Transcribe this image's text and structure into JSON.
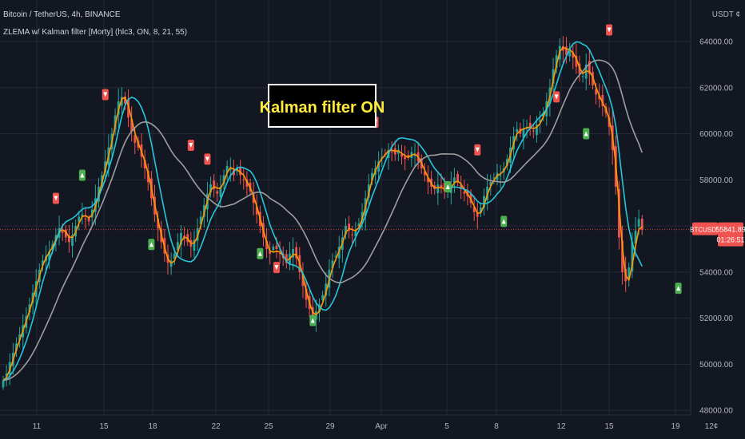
{
  "header": {
    "symbol_line": "Bitcoin / TetherUS, 4h, BINANCE",
    "indicator_line": "ZLEMA w/ Kalman filter [Morty] (hlc3, ON, 8, 21, 55)"
  },
  "currency_label": "USDT",
  "currency_sign": "¢",
  "annotation": "Kalman filter ON",
  "price_tag": {
    "symbol": "BTCUSDT",
    "price": "55841.89",
    "countdown": "01:26:51"
  },
  "colors": {
    "background": "#131722",
    "grid": "#262a35",
    "up_candle": "#26a69a",
    "down_candle": "#ef5350",
    "fast_line": "#ff9800",
    "mid_line": "#26c6da",
    "slow_line": "#9e9e9e",
    "buy_marker": "#4caf50",
    "sell_marker": "#ef5350",
    "axis_text": "#b2b5be",
    "annotation_text": "#ffeb3b"
  },
  "chart_data": {
    "type": "candlestick",
    "interval": "4h",
    "y_axis": {
      "ylim": [
        47800,
        65800
      ],
      "ticks": [
        48000,
        50000,
        52000,
        54000,
        56000,
        58000,
        60000,
        62000,
        64000
      ],
      "tick_labels": [
        "48000.00",
        "50000.00",
        "52000.00",
        "54000.00",
        "56000.00",
        "58000.00",
        "60000.00",
        "62000.00",
        "64000.00"
      ]
    },
    "x_axis": {
      "tick_labels": [
        "11",
        "15",
        "18",
        "22",
        "25",
        "29",
        "Apr",
        "5",
        "8",
        "12",
        "15",
        "19",
        "12¢"
      ]
    },
    "close_series": [
      49300,
      49600,
      50100,
      50500,
      50900,
      51300,
      51700,
      52100,
      52600,
      53100,
      53600,
      54100,
      54500,
      54700,
      54900,
      55200,
      55600,
      55900,
      55700,
      55500,
      55300,
      55600,
      56000,
      56400,
      56500,
      56300,
      56200,
      56700,
      57200,
      57700,
      58200,
      58800,
      59400,
      60000,
      60800,
      61400,
      61600,
      61300,
      60700,
      60100,
      59600,
      59400,
      59000,
      58500,
      57900,
      57200,
      56500,
      55900,
      55300,
      54800,
      54400,
      54500,
      54800,
      55300,
      55700,
      55500,
      55300,
      55100,
      55400,
      55900,
      56400,
      56900,
      57400,
      57800,
      57600,
      57400,
      57700,
      58200,
      58600,
      58500,
      58200,
      58500,
      58200,
      58000,
      57700,
      57500,
      57000,
      56500,
      56000,
      55500,
      55000,
      54800,
      55100,
      55000,
      54800,
      54600,
      54400,
      54800,
      55000,
      54600,
      54000,
      53400,
      52800,
      52400,
      52100,
      52300,
      52600,
      53000,
      53500,
      54100,
      54500,
      54700,
      55100,
      55500,
      56000,
      55800,
      55600,
      55800,
      56100,
      56600,
      57200,
      57800,
      58300,
      58500,
      58800,
      59000,
      59100,
      59300,
      59200,
      59100,
      59300,
      59000,
      58900,
      59000,
      59200,
      59100,
      58800,
      58500,
      58200,
      57900,
      57700,
      57600,
      57800,
      57700,
      57500,
      57600,
      57800,
      58100,
      57900,
      57600,
      57400,
      57300,
      57000,
      56600,
      56400,
      56800,
      57300,
      57700,
      57900,
      58100,
      58300,
      58200,
      58500,
      58900,
      59400,
      59900,
      60200,
      60000,
      60200,
      60300,
      60200,
      60100,
      60400,
      60600,
      60900,
      61400,
      62000,
      62800,
      63400,
      63800,
      63600,
      63400,
      63700,
      63300,
      62900,
      62600,
      62500,
      63000,
      62600,
      62100,
      61700,
      61500,
      61200,
      60900,
      60300,
      59300,
      57700,
      55500,
      54000,
      53600,
      54200,
      55300,
      55800,
      56300,
      55841.89
    ],
    "series": [
      {
        "role": "fast",
        "length": 8,
        "color": "#ff9800"
      },
      {
        "role": "medium",
        "length": 21,
        "color": "#26c6da"
      },
      {
        "role": "slow",
        "length": 55,
        "color": "#9e9e9e"
      }
    ],
    "last_price": 55841.89,
    "grid": true,
    "buy_signals": [
      {
        "i": 24,
        "price": 58200
      },
      {
        "i": 45,
        "price": 55200
      },
      {
        "i": 78,
        "price": 54800
      },
      {
        "i": 94,
        "price": 51900
      },
      {
        "i": 135,
        "price": 57700
      },
      {
        "i": 152,
        "price": 56200
      },
      {
        "i": 177,
        "price": 60000
      },
      {
        "i": 205,
        "price": 53300
      }
    ],
    "sell_signals": [
      {
        "i": 16,
        "price": 57200
      },
      {
        "i": 31,
        "price": 61700
      },
      {
        "i": 57,
        "price": 59500
      },
      {
        "i": 62,
        "price": 58900
      },
      {
        "i": 83,
        "price": 54200
      },
      {
        "i": 113,
        "price": 60500
      },
      {
        "i": 144,
        "price": 59300
      },
      {
        "i": 168,
        "price": 61600
      },
      {
        "i": 184,
        "price": 64500
      }
    ]
  }
}
